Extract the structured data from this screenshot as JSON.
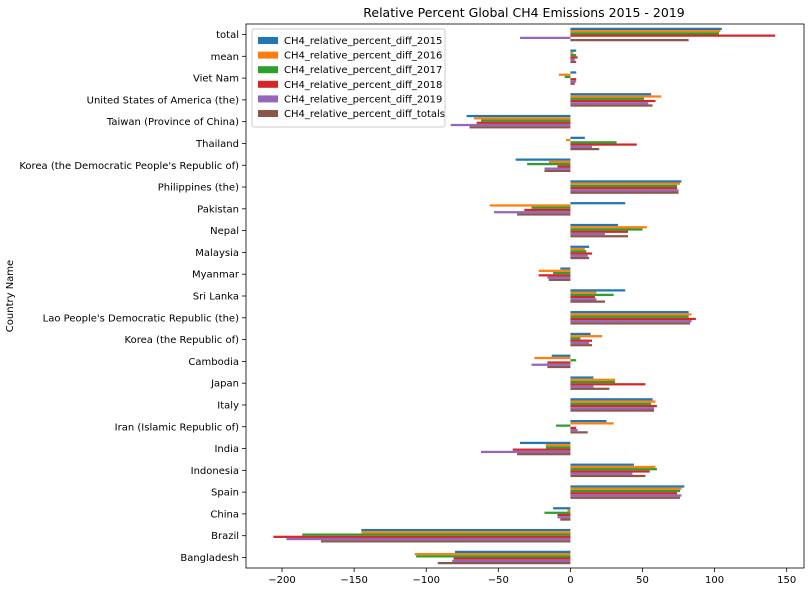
{
  "chart_data": {
    "type": "bar",
    "orientation": "horizontal",
    "title": "Relative Percent Global CH4 Emissions 2015 - 2019",
    "xlabel": "",
    "ylabel": "Country Name",
    "xlim": [
      -225,
      162
    ],
    "xticks": [
      -200,
      -150,
      -100,
      -50,
      0,
      50,
      100,
      150
    ],
    "xtick_labels": [
      "−200",
      "−150",
      "−100",
      "−50",
      "0",
      "50",
      "100",
      "150"
    ],
    "grid": false,
    "legend_position": "top-left",
    "categories": [
      "Bangladesh",
      "Brazil",
      "China",
      "Spain",
      "Indonesia",
      "India",
      "Iran (Islamic Republic of)",
      "Italy",
      "Japan",
      "Cambodia",
      "Korea (the Republic of)",
      "Lao People's Democratic Republic (the)",
      "Sri Lanka",
      "Myanmar",
      "Malaysia",
      "Nepal",
      "Pakistan",
      "Philippines (the)",
      "Korea (the Democratic People's Republic of)",
      "Thailand",
      "Taiwan (Province of China)",
      "United States of America (the)",
      "Viet Nam",
      "mean",
      "total"
    ],
    "series": [
      {
        "name": "CH4_relative_percent_diff_2015",
        "color": "#1f77b4",
        "values": [
          -80,
          -145,
          -12,
          79,
          44,
          -35,
          25,
          57,
          16,
          -13,
          14,
          82,
          38,
          -7,
          13,
          33,
          38,
          77,
          -38,
          10,
          -72,
          56,
          4,
          4,
          105
        ]
      },
      {
        "name": "CH4_relative_percent_diff_2016",
        "color": "#ff7f0e",
        "values": [
          -108,
          -145,
          -2,
          77,
          59,
          -17,
          30,
          59,
          31,
          -25,
          22,
          84,
          18,
          -22,
          10,
          53,
          -56,
          76,
          -15,
          -3,
          -67,
          63,
          -8,
          2,
          104
        ]
      },
      {
        "name": "CH4_relative_percent_diff_2017",
        "color": "#2ca02c",
        "values": [
          -107,
          -186,
          -18,
          76,
          60,
          -17,
          -10,
          56,
          31,
          4,
          7,
          82,
          30,
          -12,
          11,
          50,
          -27,
          74,
          -30,
          32,
          -62,
          51,
          -4,
          4,
          103
        ]
      },
      {
        "name": "CH4_relative_percent_diff_2018",
        "color": "#d62728",
        "values": [
          -81,
          -206,
          -9,
          74,
          55,
          -40,
          4,
          60,
          52,
          -16,
          15,
          87,
          17,
          -22,
          15,
          40,
          -32,
          74,
          -9,
          46,
          -65,
          59,
          4,
          5,
          142
        ]
      },
      {
        "name": "CH4_relative_percent_diff_2019",
        "color": "#9467bd",
        "values": [
          -82,
          -197,
          -9,
          77,
          43,
          -62,
          5,
          58,
          16,
          -27,
          13,
          84,
          18,
          -16,
          12,
          24,
          -53,
          75,
          -18,
          15,
          -83,
          54,
          4,
          3,
          -35
        ]
      },
      {
        "name": "CH4_relative_percent_diff_totals",
        "color": "#8c564b",
        "values": [
          -92,
          -173,
          -7,
          76,
          52,
          -37,
          12,
          58,
          27,
          -16,
          15,
          83,
          24,
          -15,
          13,
          40,
          -37,
          75,
          -18,
          20,
          -70,
          57,
          3,
          4,
          82
        ]
      }
    ]
  }
}
